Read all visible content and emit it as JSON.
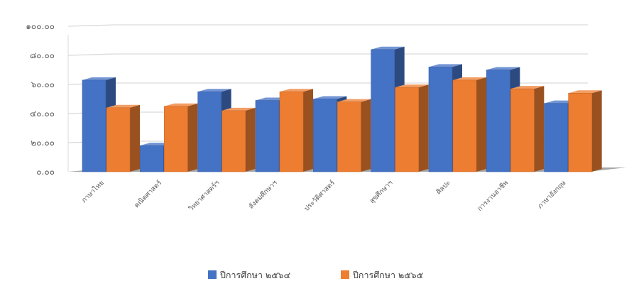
{
  "chart_data": {
    "type": "bar",
    "style": "3d-clustered-column",
    "categories": [
      "ภาษาไทย",
      "คณิตศาสตร์",
      "วิทยาศาสตร์ฯ",
      "สังคมศึกษาฯ",
      "ประวัติศาสตร์",
      "สุขศึกษาฯ",
      "ศิลปะ",
      "การงานอาชีพ",
      "ภาษาอังกฤษ"
    ],
    "series": [
      {
        "name": "ปีการศึกษา ๒๕๖๔",
        "values": [
          63,
          18,
          55,
          49,
          50,
          84,
          72,
          70,
          47
        ],
        "color": "#4472c4"
      },
      {
        "name": "ปีการศึกษา ๒๕๖๕",
        "values": [
          44,
          45,
          42,
          55,
          48,
          58,
          63,
          57,
          54
        ],
        "color": "#ed7d31"
      }
    ],
    "ylim": [
      0,
      100
    ],
    "yticks": [
      0,
      20,
      40,
      60,
      80,
      100
    ],
    "ytick_labels": [
      "๐.๐๐",
      "๒๐.๐๐",
      "๔๐.๐๐",
      "๖๐.๐๐",
      "๘๐.๐๐",
      "๑๐๐.๐๐"
    ],
    "grid": true,
    "legend": "bottom",
    "title": "",
    "xlabel": "",
    "ylabel": ""
  }
}
